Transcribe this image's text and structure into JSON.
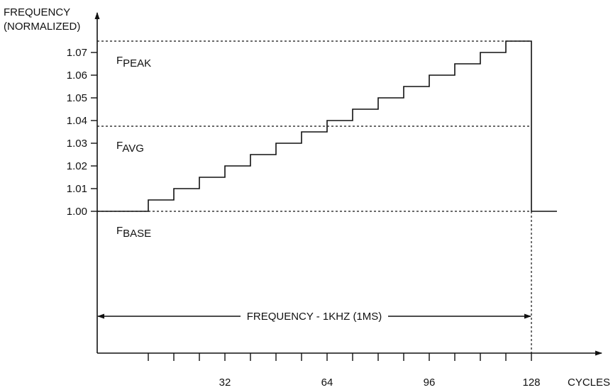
{
  "chart_data": {
    "type": "line",
    "title": "",
    "ylabel_line1": "FREQUENCY",
    "ylabel_line2": "(NORMALIZED)",
    "xlabel": "CYCLES",
    "x_ticks": [
      32,
      64,
      96,
      128
    ],
    "x_minor_step": 8,
    "y_ticks": [
      "1.00",
      "1.01",
      "1.02",
      "1.03",
      "1.04",
      "1.05",
      "1.06",
      "1.07"
    ],
    "xlim": [
      -8,
      150
    ],
    "ylim": [
      0.9375,
      1.0875
    ],
    "grid": false,
    "series": [
      {
        "steps": [
          {
            "x0": 0,
            "x1": 8,
            "y": 1.0
          },
          {
            "x0": 8,
            "x1": 16,
            "y": 1.005
          },
          {
            "x0": 16,
            "x1": 24,
            "y": 1.01
          },
          {
            "x0": 24,
            "x1": 32,
            "y": 1.015
          },
          {
            "x0": 32,
            "x1": 40,
            "y": 1.02
          },
          {
            "x0": 40,
            "x1": 48,
            "y": 1.025
          },
          {
            "x0": 48,
            "x1": 56,
            "y": 1.03
          },
          {
            "x0": 56,
            "x1": 64,
            "y": 1.035
          },
          {
            "x0": 64,
            "x1": 72,
            "y": 1.04
          },
          {
            "x0": 72,
            "x1": 80,
            "y": 1.045
          },
          {
            "x0": 80,
            "x1": 88,
            "y": 1.05
          },
          {
            "x0": 88,
            "x1": 96,
            "y": 1.055
          },
          {
            "x0": 96,
            "x1": 104,
            "y": 1.06
          },
          {
            "x0": 104,
            "x1": 112,
            "y": 1.065
          },
          {
            "x0": 112,
            "x1": 120,
            "y": 1.07
          },
          {
            "x0": 120,
            "x1": 128,
            "y": 1.075
          },
          {
            "x0": 128,
            "x1": 136,
            "y": 1.0
          }
        ]
      }
    ],
    "reference_lines": [
      {
        "base": "F",
        "sub": "PEAK",
        "y": 1.075
      },
      {
        "base": "F",
        "sub": "AVG",
        "y": 1.0375
      },
      {
        "base": "F",
        "sub": "BASE",
        "y": 1.0
      }
    ],
    "period_marker": {
      "label": "FREQUENCY - 1KHZ (1MS)",
      "x0": 0,
      "x1": 128
    },
    "vertical_marker_x": 128
  }
}
